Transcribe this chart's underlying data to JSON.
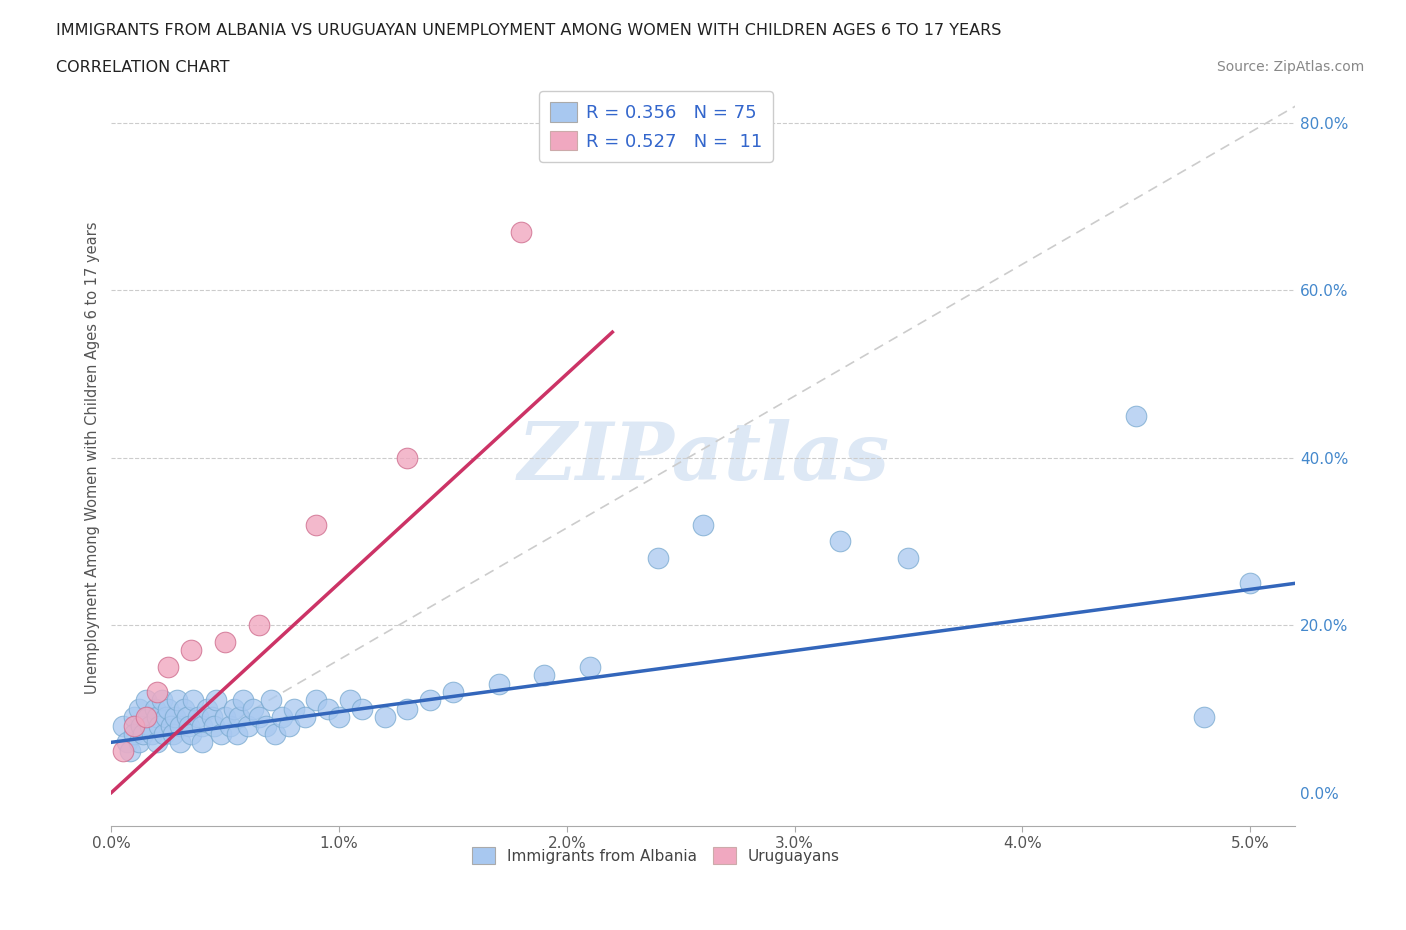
{
  "title_line1": "IMMIGRANTS FROM ALBANIA VS URUGUAYAN UNEMPLOYMENT AMONG WOMEN WITH CHILDREN AGES 6 TO 17 YEARS",
  "title_line2": "CORRELATION CHART",
  "source": "Source: ZipAtlas.com",
  "xlabel_vals": [
    0.0,
    1.0,
    2.0,
    3.0,
    4.0,
    5.0
  ],
  "ylabel_vals": [
    0.0,
    20.0,
    40.0,
    60.0,
    80.0
  ],
  "ylabel_label": "Unemployment Among Women with Children Ages 6 to 17 years",
  "xlim": [
    0.0,
    5.2
  ],
  "ylim": [
    -4.0,
    84.0
  ],
  "albania_color": "#a8c8f0",
  "albania_edge_color": "#7aaad0",
  "uruguay_color": "#f0a8c0",
  "uruguay_edge_color": "#d07090",
  "trendline_albania_color": "#3366bb",
  "trendline_uruguay_color": "#cc3366",
  "diagonal_color": "#cccccc",
  "watermark": "ZIPatlas",
  "watermark_color": "#dde8f5",
  "legend_text_color": "#3366cc",
  "legend_r_albania": "R = 0.356",
  "legend_n_albania": "N = 75",
  "legend_r_uruguay": "R = 0.527",
  "legend_n_uruguay": "N =  11",
  "albania_x": [
    0.05,
    0.07,
    0.08,
    0.1,
    0.1,
    0.12,
    0.12,
    0.13,
    0.14,
    0.15,
    0.16,
    0.17,
    0.18,
    0.19,
    0.2,
    0.2,
    0.21,
    0.22,
    0.23,
    0.24,
    0.25,
    0.26,
    0.27,
    0.28,
    0.29,
    0.3,
    0.3,
    0.32,
    0.33,
    0.34,
    0.35,
    0.36,
    0.38,
    0.4,
    0.4,
    0.42,
    0.44,
    0.45,
    0.46,
    0.48,
    0.5,
    0.52,
    0.54,
    0.55,
    0.56,
    0.58,
    0.6,
    0.62,
    0.65,
    0.68,
    0.7,
    0.72,
    0.75,
    0.78,
    0.8,
    0.85,
    0.9,
    0.95,
    1.0,
    1.05,
    1.1,
    1.2,
    1.3,
    1.4,
    1.5,
    1.7,
    1.9,
    2.1,
    2.4,
    2.6,
    3.2,
    3.5,
    4.5,
    4.8,
    5.0
  ],
  "albania_y": [
    8.0,
    6.0,
    5.0,
    9.0,
    7.0,
    10.0,
    6.0,
    8.0,
    7.0,
    11.0,
    9.0,
    8.0,
    7.0,
    10.0,
    9.0,
    6.0,
    8.0,
    11.0,
    7.0,
    9.0,
    10.0,
    8.0,
    7.0,
    9.0,
    11.0,
    8.0,
    6.0,
    10.0,
    9.0,
    8.0,
    7.0,
    11.0,
    9.0,
    8.0,
    6.0,
    10.0,
    9.0,
    8.0,
    11.0,
    7.0,
    9.0,
    8.0,
    10.0,
    7.0,
    9.0,
    11.0,
    8.0,
    10.0,
    9.0,
    8.0,
    11.0,
    7.0,
    9.0,
    8.0,
    10.0,
    9.0,
    11.0,
    10.0,
    9.0,
    11.0,
    10.0,
    9.0,
    10.0,
    11.0,
    12.0,
    13.0,
    14.0,
    15.0,
    28.0,
    32.0,
    30.0,
    28.0,
    45.0,
    9.0,
    25.0
  ],
  "uruguay_x": [
    0.05,
    0.1,
    0.15,
    0.2,
    0.25,
    0.35,
    0.5,
    0.65,
    0.9,
    1.3,
    1.8
  ],
  "uruguay_y": [
    5.0,
    8.0,
    9.0,
    12.0,
    15.0,
    17.0,
    18.0,
    20.0,
    32.0,
    40.0,
    67.0
  ],
  "trendline_alb_x0": 0.0,
  "trendline_alb_y0": 6.0,
  "trendline_alb_x1": 5.2,
  "trendline_alb_y1": 25.0,
  "trendline_uru_x0": 0.0,
  "trendline_uru_y0": 0.0,
  "trendline_uru_x1": 2.2,
  "trendline_uru_y1": 55.0
}
